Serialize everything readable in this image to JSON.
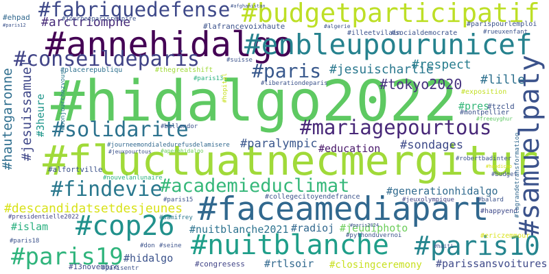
{
  "words": [
    {
      "text": "#hidalgo2022",
      "color": "#5ec962"
    },
    {
      "text": "#fluctuatnecmergitur",
      "color": "#a0da39"
    },
    {
      "text": "#faceamediapart",
      "color": "#31688e"
    },
    {
      "text": "#annehidalgo",
      "color": "#440154"
    },
    {
      "text": "#enbleupourunicef",
      "color": "#26828e"
    },
    {
      "text": "#budgetparticipatif",
      "color": "#bddf26"
    },
    {
      "text": "#samuelpaty",
      "color": "#3b528b"
    },
    {
      "text": "#nuitblanche",
      "color": "#1f9e89"
    },
    {
      "text": "#cop26",
      "color": "#21918c"
    },
    {
      "text": "#paris10",
      "color": "#25858e"
    },
    {
      "text": "#mariagepourtous",
      "color": "#482878"
    },
    {
      "text": "#fabriquedefense",
      "color": "#3e4989"
    },
    {
      "text": "#conseildeparis",
      "color": "#414487"
    },
    {
      "text": "#solidarite",
      "color": "#2c728e"
    },
    {
      "text": "#findevie",
      "color": "#2a788e"
    },
    {
      "text": "#academieduclimat",
      "color": "#35b779"
    },
    {
      "text": "#paris19",
      "color": "#2fb47c"
    },
    {
      "text": "#paris",
      "color": "#38588c"
    },
    {
      "text": "#tokyo2020",
      "color": "#46337e"
    },
    {
      "text": "#descandidatsetdesjeunes",
      "color": "#d8e219"
    },
    {
      "text": "#jesuissamuel",
      "color": "#3f4788"
    },
    {
      "text": "#hautegaronne",
      "color": "#2e6e8e"
    },
    {
      "text": "#jesuischarlie",
      "color": "#2a788e"
    },
    {
      "text": "#arctriomphe",
      "color": "#472c7a"
    },
    {
      "text": "#respect",
      "color": "#287d8e"
    },
    {
      "text": "#lille",
      "color": "#2d708e"
    },
    {
      "text": "#paralympic",
      "color": "#39568c"
    },
    {
      "text": "#education",
      "color": "#481769"
    },
    {
      "text": "#sondages",
      "color": "#3e4a89"
    },
    {
      "text": "#generationhidalgo",
      "color": "#306a8e"
    },
    {
      "text": "#nuitblanche2021",
      "color": "#2c728e"
    },
    {
      "text": "#radioj",
      "color": "#31688e"
    },
    {
      "text": "#jeudiphoto",
      "color": "#6ccd5a"
    },
    {
      "text": "#islam",
      "color": "#2ab07f"
    },
    {
      "text": "#hidalgo",
      "color": "#3b528b"
    },
    {
      "text": "#rtlsoir",
      "color": "#31688e"
    },
    {
      "text": "#parissansvoitures",
      "color": "#3e4989"
    },
    {
      "text": "#closingceremony",
      "color": "#c8e020"
    },
    {
      "text": "#3heure",
      "color": "#1f968b"
    },
    {
      "text": "#pres",
      "color": "#35b779"
    },
    {
      "text": "#tzcld",
      "color": "#3b528b"
    },
    {
      "text": "#lafrancevoixhaute",
      "color": "#3b528b"
    },
    {
      "text": "#alfortville",
      "color": "#3b528b"
    },
    {
      "text": "#congresess",
      "color": "#414487"
    },
    {
      "text": "#13novembre",
      "color": "#3e4989"
    },
    {
      "text": "#ehpad",
      "color": "#31688e"
    },
    {
      "text": "#placerepubliqu",
      "color": "#2d708e"
    },
    {
      "text": "#thegreatshift",
      "color": "#a0da39"
    },
    {
      "text": "#exposition",
      "color": "#c2df23"
    },
    {
      "text": "#montpellier",
      "color": "#3b528b"
    },
    {
      "text": "#happyend",
      "color": "#3e4989"
    },
    {
      "text": "#robertbadinter",
      "color": "#3b528b"
    },
    {
      "text": "#lagrandetransformation",
      "color": "#31688e"
    },
    {
      "text": "#budget",
      "color": "#3b528b"
    },
    {
      "text": "#handicap",
      "color": "#d8e219"
    },
    {
      "text": "#balard",
      "color": "#3b528b"
    },
    {
      "text": "#jeuxolympique",
      "color": "#414487"
    },
    {
      "text": "#collegecitoyendefrance",
      "color": "#3b528b"
    },
    {
      "text": "#paris15",
      "color": "#3b528b"
    },
    {
      "text": "#presidentielle2022",
      "color": "#414487"
    },
    {
      "text": "#samifrey",
      "color": "#2a788e"
    },
    {
      "text": "#paris2024",
      "color": "#3b528b"
    },
    {
      "text": "#pythonduvernoi",
      "color": "#3b528b"
    },
    {
      "text": "#ericzemmour",
      "color": "#d8e219"
    },
    {
      "text": "#haiti",
      "color": "#3b528b"
    },
    {
      "text": "#paris18",
      "color": "#3b528b"
    },
    {
      "text": "#parisentr",
      "color": "#3b528b"
    },
    {
      "text": "#don",
      "color": "#3b528b"
    },
    {
      "text": "#seine",
      "color": "#3b528b"
    },
    {
      "text": "#nouvelanlunaire",
      "color": "#2ab07f"
    },
    {
      "text": "#journeemondialedurefusdelamisere",
      "color": "#31688e"
    },
    {
      "text": "#jeuxpourtous",
      "color": "#3b528b"
    },
    {
      "text": "#ballondor",
      "color": "#3b528b"
    },
    {
      "text": "#bonjourchezvous",
      "color": "#2a788e"
    },
    {
      "text": "#liberationdeparis",
      "color": "#3b528b"
    },
    {
      "text": "#paris13",
      "color": "#2ab07f"
    },
    {
      "text": "#hopital",
      "color": "#c8e020"
    },
    {
      "text": "#suisse",
      "color": "#3b528b"
    },
    {
      "text": "#socialdemocrate",
      "color": "#3b528b"
    },
    {
      "text": "#illeetvilain",
      "color": "#3b528b"
    },
    {
      "text": "#algerie",
      "color": "#3b528b"
    },
    {
      "text": "#journeeparisrespire",
      "color": "#3b528b"
    },
    {
      "text": "#parispourlemploi",
      "color": "#3b528b"
    },
    {
      "text": "#rueuxenfant",
      "color": "#3b528b"
    },
    {
      "text": "#freeuyghur",
      "color": "#5ec962"
    },
    {
      "text": "#aperohidalgo",
      "color": "#6ccd5a"
    },
    {
      "text": "#paris12",
      "color": "#3b528b"
    },
    {
      "text": "#afghanistan",
      "color": "#3b528b"
    }
  ]
}
